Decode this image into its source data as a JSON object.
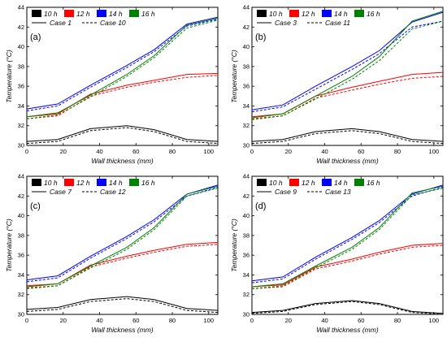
{
  "chart_data": [
    {
      "type": "line",
      "panel_label": "(a)",
      "xlabel": "Wall thickness (mm)",
      "ylabel": "Temperature (°C)",
      "xlim": [
        0,
        105
      ],
      "ylim": [
        30,
        44
      ],
      "xticks": [
        "0",
        "20",
        "40",
        "60",
        "80",
        "100"
      ],
      "yticks": [
        "30",
        "32",
        "34",
        "36",
        "38",
        "40",
        "42",
        "44"
      ],
      "legend_times": [
        {
          "label": "10 h",
          "color": "#000000"
        },
        {
          "label": "12 h",
          "color": "#ff0000"
        },
        {
          "label": "14 h",
          "color": "#0000ff"
        },
        {
          "label": "16 h",
          "color": "#008000"
        }
      ],
      "legend_cases": [
        {
          "label": "Case 1",
          "style": "solid"
        },
        {
          "label": "Case 10",
          "style": "dashed"
        }
      ],
      "x": [
        0,
        17,
        35,
        55,
        70,
        88,
        105
      ],
      "series": [
        {
          "time": "10 h",
          "case": "Case 1",
          "color": "#000000",
          "style": "solid",
          "values": [
            30.4,
            30.6,
            31.7,
            32.0,
            31.6,
            30.6,
            30.4
          ]
        },
        {
          "time": "10 h",
          "case": "Case 10",
          "color": "#000000",
          "style": "dashed",
          "values": [
            30.2,
            30.4,
            31.5,
            31.8,
            31.4,
            30.4,
            30.2
          ]
        },
        {
          "time": "12 h",
          "case": "Case 1",
          "color": "#ff0000",
          "style": "solid",
          "values": [
            32.9,
            33.2,
            35.2,
            36.1,
            36.6,
            37.2,
            37.3
          ]
        },
        {
          "time": "12 h",
          "case": "Case 10",
          "color": "#ff0000",
          "style": "dashed",
          "values": [
            32.7,
            33.0,
            35.0,
            35.9,
            36.4,
            36.9,
            37.1
          ]
        },
        {
          "time": "14 h",
          "case": "Case 1",
          "color": "#0000ff",
          "style": "solid",
          "values": [
            33.7,
            34.2,
            36.1,
            38.1,
            39.7,
            42.3,
            43.0
          ]
        },
        {
          "time": "14 h",
          "case": "Case 10",
          "color": "#0000ff",
          "style": "dashed",
          "values": [
            33.5,
            34.0,
            35.9,
            37.9,
            39.5,
            42.1,
            42.8
          ]
        },
        {
          "time": "16 h",
          "case": "Case 1",
          "color": "#008000",
          "style": "solid",
          "values": [
            32.9,
            33.3,
            35.1,
            37.2,
            39.1,
            42.2,
            42.9
          ]
        },
        {
          "time": "16 h",
          "case": "Case 10",
          "color": "#008000",
          "style": "dashed",
          "values": [
            32.7,
            33.1,
            34.9,
            37.0,
            38.9,
            41.9,
            42.7
          ]
        }
      ]
    },
    {
      "type": "line",
      "panel_label": "(b)",
      "xlabel": "Wall thickness (mm)",
      "ylabel": "Temperature (°C)",
      "xlim": [
        0,
        105
      ],
      "ylim": [
        30,
        44
      ],
      "xticks": [
        "0",
        "20",
        "40",
        "60",
        "80",
        "100"
      ],
      "yticks": [
        "30",
        "32",
        "34",
        "36",
        "38",
        "40",
        "42",
        "44"
      ],
      "legend_times": [
        {
          "label": "10 h",
          "color": "#000000"
        },
        {
          "label": "12 h",
          "color": "#ff0000"
        },
        {
          "label": "14 h",
          "color": "#0000ff"
        },
        {
          "label": "16 h",
          "color": "#008000"
        }
      ],
      "legend_cases": [
        {
          "label": "Case 3",
          "style": "solid"
        },
        {
          "label": "Case 11",
          "style": "dashed"
        }
      ],
      "x": [
        0,
        17,
        35,
        55,
        70,
        88,
        105
      ],
      "series": [
        {
          "time": "10 h",
          "case": "Case 3",
          "color": "#000000",
          "style": "solid",
          "values": [
            30.4,
            30.6,
            31.4,
            31.7,
            31.4,
            30.6,
            30.4
          ]
        },
        {
          "time": "10 h",
          "case": "Case 11",
          "color": "#000000",
          "style": "dashed",
          "values": [
            30.2,
            30.4,
            31.2,
            31.5,
            31.2,
            30.4,
            30.2
          ]
        },
        {
          "time": "12 h",
          "case": "Case 3",
          "color": "#ff0000",
          "style": "solid",
          "values": [
            32.9,
            33.2,
            35.0,
            35.9,
            36.5,
            37.2,
            37.4
          ]
        },
        {
          "time": "12 h",
          "case": "Case 11",
          "color": "#ff0000",
          "style": "dashed",
          "values": [
            32.7,
            33.0,
            34.8,
            35.6,
            36.2,
            36.8,
            37.0
          ]
        },
        {
          "time": "14 h",
          "case": "Case 3",
          "color": "#0000ff",
          "style": "solid",
          "values": [
            33.6,
            34.1,
            36.0,
            38.0,
            39.6,
            42.5,
            43.5
          ]
        },
        {
          "time": "14 h",
          "case": "Case 11",
          "color": "#0000ff",
          "style": "dashed",
          "values": [
            33.4,
            33.9,
            35.7,
            37.7,
            39.3,
            42.0,
            42.6
          ]
        },
        {
          "time": "16 h",
          "case": "Case 3",
          "color": "#008000",
          "style": "solid",
          "values": [
            32.8,
            33.2,
            35.0,
            37.0,
            39.0,
            42.6,
            43.6
          ]
        },
        {
          "time": "16 h",
          "case": "Case 11",
          "color": "#008000",
          "style": "dashed",
          "values": [
            32.6,
            33.0,
            34.7,
            36.7,
            38.6,
            41.8,
            42.6
          ]
        }
      ]
    },
    {
      "type": "line",
      "panel_label": "(c)",
      "xlabel": "Wall thickness (mm)",
      "ylabel": "Temperature (°C)",
      "xlim": [
        0,
        105
      ],
      "ylim": [
        30,
        44
      ],
      "xticks": [
        "0",
        "20",
        "40",
        "60",
        "80",
        "100"
      ],
      "yticks": [
        "30",
        "32",
        "34",
        "36",
        "38",
        "40",
        "42",
        "44"
      ],
      "legend_times": [
        {
          "label": "10 h",
          "color": "#000000"
        },
        {
          "label": "12 h",
          "color": "#ff0000"
        },
        {
          "label": "14 h",
          "color": "#0000ff"
        },
        {
          "label": "16 h",
          "color": "#008000"
        }
      ],
      "legend_cases": [
        {
          "label": "Case 7",
          "style": "solid"
        },
        {
          "label": "Case 12",
          "style": "dashed"
        }
      ],
      "x": [
        0,
        17,
        35,
        55,
        70,
        88,
        105
      ],
      "series": [
        {
          "time": "10 h",
          "case": "Case 7",
          "color": "#000000",
          "style": "solid",
          "values": [
            30.5,
            30.7,
            31.5,
            31.8,
            31.5,
            30.6,
            30.4
          ]
        },
        {
          "time": "10 h",
          "case": "Case 12",
          "color": "#000000",
          "style": "dashed",
          "values": [
            30.3,
            30.5,
            31.3,
            31.6,
            31.3,
            30.4,
            30.2
          ]
        },
        {
          "time": "12 h",
          "case": "Case 7",
          "color": "#ff0000",
          "style": "solid",
          "values": [
            32.9,
            33.1,
            35.0,
            35.9,
            36.5,
            37.1,
            37.3
          ]
        },
        {
          "time": "12 h",
          "case": "Case 12",
          "color": "#ff0000",
          "style": "dashed",
          "values": [
            32.7,
            32.9,
            34.8,
            35.7,
            36.3,
            36.9,
            37.1
          ]
        },
        {
          "time": "14 h",
          "case": "Case 7",
          "color": "#0000ff",
          "style": "solid",
          "values": [
            33.5,
            33.9,
            35.9,
            37.9,
            39.6,
            42.2,
            43.1
          ]
        },
        {
          "time": "14 h",
          "case": "Case 12",
          "color": "#0000ff",
          "style": "dashed",
          "values": [
            33.3,
            33.7,
            35.7,
            37.7,
            39.4,
            42.0,
            42.9
          ]
        },
        {
          "time": "16 h",
          "case": "Case 7",
          "color": "#008000",
          "style": "solid",
          "values": [
            32.8,
            33.1,
            34.9,
            36.8,
            38.8,
            42.2,
            43.0
          ]
        },
        {
          "time": "16 h",
          "case": "Case 12",
          "color": "#008000",
          "style": "dashed",
          "values": [
            32.6,
            32.9,
            34.7,
            36.6,
            38.6,
            42.0,
            42.8
          ]
        }
      ]
    },
    {
      "type": "line",
      "panel_label": "(d)",
      "xlabel": "Wall thickness (mm)",
      "ylabel": "Temperature (°C)",
      "xlim": [
        0,
        105
      ],
      "ylim": [
        30,
        44
      ],
      "xticks": [
        "0",
        "20",
        "40",
        "60",
        "80",
        "100"
      ],
      "yticks": [
        "30",
        "32",
        "34",
        "36",
        "38",
        "40",
        "42",
        "44"
      ],
      "legend_times": [
        {
          "label": "10 h",
          "color": "#000000"
        },
        {
          "label": "12 h",
          "color": "#ff0000"
        },
        {
          "label": "14 h",
          "color": "#0000ff"
        },
        {
          "label": "16 h",
          "color": "#008000"
        }
      ],
      "legend_cases": [
        {
          "label": "Case 9",
          "style": "solid"
        },
        {
          "label": "Case 13",
          "style": "dashed"
        }
      ],
      "x": [
        0,
        17,
        35,
        55,
        70,
        88,
        105
      ],
      "series": [
        {
          "time": "10 h",
          "case": "Case 9",
          "color": "#000000",
          "style": "solid",
          "values": [
            30.2,
            30.4,
            31.1,
            31.4,
            31.1,
            30.3,
            30.1
          ]
        },
        {
          "time": "10 h",
          "case": "Case 13",
          "color": "#000000",
          "style": "dashed",
          "values": [
            30.1,
            30.3,
            31.0,
            31.3,
            31.0,
            30.2,
            30.0
          ]
        },
        {
          "time": "12 h",
          "case": "Case 9",
          "color": "#ff0000",
          "style": "solid",
          "values": [
            32.8,
            33.0,
            34.8,
            35.6,
            36.3,
            37.0,
            37.2
          ]
        },
        {
          "time": "12 h",
          "case": "Case 13",
          "color": "#ff0000",
          "style": "dashed",
          "values": [
            32.6,
            32.8,
            34.6,
            35.4,
            36.1,
            36.8,
            37.0
          ]
        },
        {
          "time": "14 h",
          "case": "Case 9",
          "color": "#0000ff",
          "style": "solid",
          "values": [
            33.4,
            33.8,
            35.8,
            37.8,
            39.5,
            42.2,
            43.1
          ]
        },
        {
          "time": "14 h",
          "case": "Case 13",
          "color": "#0000ff",
          "style": "dashed",
          "values": [
            33.2,
            33.6,
            35.6,
            37.6,
            39.3,
            42.0,
            42.9
          ]
        },
        {
          "time": "16 h",
          "case": "Case 9",
          "color": "#008000",
          "style": "solid",
          "values": [
            32.8,
            33.1,
            34.9,
            36.8,
            38.8,
            42.3,
            43.0
          ]
        },
        {
          "time": "16 h",
          "case": "Case 13",
          "color": "#008000",
          "style": "dashed",
          "values": [
            32.6,
            32.9,
            34.7,
            36.6,
            38.6,
            42.1,
            42.8
          ]
        }
      ]
    }
  ]
}
